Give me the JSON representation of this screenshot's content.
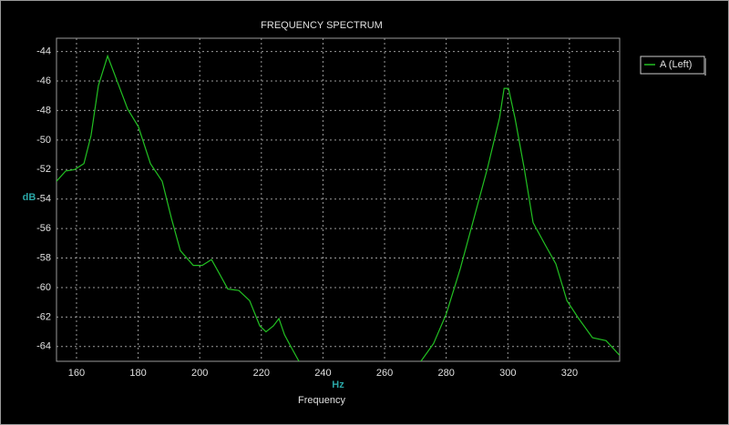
{
  "chart_data": {
    "type": "line",
    "title": "FREQUENCY SPECTRUM",
    "x_label": "Frequency",
    "x_unit": "Hz",
    "y_label": "dB",
    "xlim": [
      153.5,
      336.3
    ],
    "ylim": [
      -65.0,
      -43.1
    ],
    "xticks": [
      160,
      180,
      200,
      220,
      240,
      260,
      280,
      300,
      320
    ],
    "yticks": [
      -44,
      -46,
      -48,
      -50,
      -52,
      -54,
      -56,
      -58,
      -60,
      -62,
      -64
    ],
    "grid": true,
    "legend": "right",
    "x": [
      153.5,
      156.5,
      159.4,
      162.4,
      164.7,
      167.1,
      170.1,
      173.0,
      176.6,
      180.1,
      184.0,
      187.8,
      190.8,
      193.7,
      197.9,
      200.8,
      203.8,
      206.2,
      209.1,
      212.7,
      216.2,
      219.5,
      221.5,
      223.9,
      225.7,
      227.5,
      229.8,
      232.2,
      252.0,
      271.8,
      275.9,
      280.0,
      284.6,
      289.0,
      293.4,
      297.3,
      298.8,
      300.2,
      302.3,
      305.3,
      308.2,
      312.1,
      315.6,
      319.2,
      323.0,
      327.5,
      331.9,
      336.3
    ],
    "series": [
      {
        "name": "A (Left)",
        "color": "#22c022",
        "values": [
          -52.8,
          -52.1,
          -52.0,
          -51.6,
          -49.7,
          -46.3,
          -44.3,
          -45.9,
          -47.9,
          -49.1,
          -51.6,
          -52.8,
          -55.3,
          -57.5,
          -58.5,
          -58.5,
          -58.1,
          -59.0,
          -60.1,
          -60.2,
          -60.9,
          -62.6,
          -63.0,
          -62.6,
          -62.1,
          -63.2,
          -64.1,
          -65.0,
          null,
          -65.0,
          -63.8,
          -61.8,
          -58.7,
          -55.3,
          -51.9,
          -48.5,
          -46.5,
          -46.5,
          -48.5,
          -51.9,
          -55.6,
          -57.1,
          -58.4,
          -60.9,
          -62.1,
          -63.4,
          -63.6,
          -64.6
        ]
      }
    ]
  }
}
